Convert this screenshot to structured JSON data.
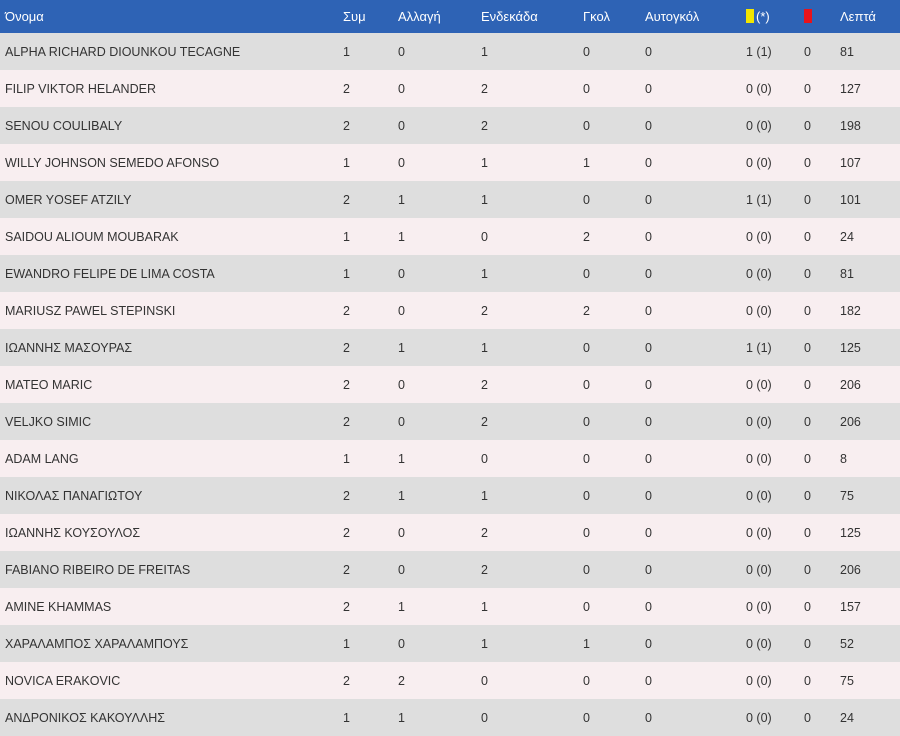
{
  "header": {
    "name": "Όνομα",
    "appearances": "Συμ",
    "subs": "Αλλαγή",
    "lineups": "Ενδεκάδα",
    "goals": "Γκολ",
    "own_goals": "Αυτογκόλ",
    "yellow_note": "(*)",
    "minutes": "Λεπτά",
    "yellow_color": "#f2e600",
    "red_color": "#e8131b"
  },
  "rows": [
    {
      "name": "ALPHA RICHARD DIOUNKOU TECAGNE",
      "apps": "1",
      "subs": "0",
      "starts": "1",
      "goals": "0",
      "own": "0",
      "yellow": "1 (1)",
      "red": "0",
      "minutes": "81"
    },
    {
      "name": "FILIP VIKTOR HELANDER",
      "apps": "2",
      "subs": "0",
      "starts": "2",
      "goals": "0",
      "own": "0",
      "yellow": "0 (0)",
      "red": "0",
      "minutes": "127"
    },
    {
      "name": "SENOU COULIBALY",
      "apps": "2",
      "subs": "0",
      "starts": "2",
      "goals": "0",
      "own": "0",
      "yellow": "0 (0)",
      "red": "0",
      "minutes": "198"
    },
    {
      "name": "WILLY JOHNSON SEMEDO AFONSO",
      "apps": "1",
      "subs": "0",
      "starts": "1",
      "goals": "1",
      "own": "0",
      "yellow": "0 (0)",
      "red": "0",
      "minutes": "107"
    },
    {
      "name": "OMER YOSEF ATZILY",
      "apps": "2",
      "subs": "1",
      "starts": "1",
      "goals": "0",
      "own": "0",
      "yellow": "1 (1)",
      "red": "0",
      "minutes": "101"
    },
    {
      "name": "SAIDOU ALIOUM MOUBARAK",
      "apps": "1",
      "subs": "1",
      "starts": "0",
      "goals": "2",
      "own": "0",
      "yellow": "0 (0)",
      "red": "0",
      "minutes": "24"
    },
    {
      "name": "EWANDRO FELIPE DE LIMA COSTA",
      "apps": "1",
      "subs": "0",
      "starts": "1",
      "goals": "0",
      "own": "0",
      "yellow": "0 (0)",
      "red": "0",
      "minutes": "81"
    },
    {
      "name": "MARIUSZ PAWEL STEPINSKI",
      "apps": "2",
      "subs": "0",
      "starts": "2",
      "goals": "2",
      "own": "0",
      "yellow": "0 (0)",
      "red": "0",
      "minutes": "182"
    },
    {
      "name": "ΙΩΑΝΝΗΣ ΜΑΣΟΥΡΑΣ",
      "apps": "2",
      "subs": "1",
      "starts": "1",
      "goals": "0",
      "own": "0",
      "yellow": "1 (1)",
      "red": "0",
      "minutes": "125"
    },
    {
      "name": "MATEO MARIC",
      "apps": "2",
      "subs": "0",
      "starts": "2",
      "goals": "0",
      "own": "0",
      "yellow": "0 (0)",
      "red": "0",
      "minutes": "206"
    },
    {
      "name": "VELJKO SIMIC",
      "apps": "2",
      "subs": "0",
      "starts": "2",
      "goals": "0",
      "own": "0",
      "yellow": "0 (0)",
      "red": "0",
      "minutes": "206"
    },
    {
      "name": "ADAM LANG",
      "apps": "1",
      "subs": "1",
      "starts": "0",
      "goals": "0",
      "own": "0",
      "yellow": "0 (0)",
      "red": "0",
      "minutes": "8"
    },
    {
      "name": "ΝΙΚΟΛΑΣ ΠΑΝΑΓΙΩΤΟΥ",
      "apps": "2",
      "subs": "1",
      "starts": "1",
      "goals": "0",
      "own": "0",
      "yellow": "0 (0)",
      "red": "0",
      "minutes": "75"
    },
    {
      "name": "ΙΩΑΝΝΗΣ ΚΟΥΣΟΥΛΟΣ",
      "apps": "2",
      "subs": "0",
      "starts": "2",
      "goals": "0",
      "own": "0",
      "yellow": "0 (0)",
      "red": "0",
      "minutes": "125"
    },
    {
      "name": "FABIANO RIBEIRO DE FREITAS",
      "apps": "2",
      "subs": "0",
      "starts": "2",
      "goals": "0",
      "own": "0",
      "yellow": "0 (0)",
      "red": "0",
      "minutes": "206"
    },
    {
      "name": "AMINE KHAMMAS",
      "apps": "2",
      "subs": "1",
      "starts": "1",
      "goals": "0",
      "own": "0",
      "yellow": "0 (0)",
      "red": "0",
      "minutes": "157"
    },
    {
      "name": "ΧΑΡΑΛΑΜΠΟΣ ΧΑΡΑΛΑΜΠΟΥΣ",
      "apps": "1",
      "subs": "0",
      "starts": "1",
      "goals": "1",
      "own": "0",
      "yellow": "0 (0)",
      "red": "0",
      "minutes": "52"
    },
    {
      "name": "NOVICA ERAKOVIC",
      "apps": "2",
      "subs": "2",
      "starts": "0",
      "goals": "0",
      "own": "0",
      "yellow": "0 (0)",
      "red": "0",
      "minutes": "75"
    },
    {
      "name": "ΑΝΔΡΟΝΙΚΟΣ ΚΑΚΟΥΛΛΗΣ",
      "apps": "1",
      "subs": "1",
      "starts": "0",
      "goals": "0",
      "own": "0",
      "yellow": "0 (0)",
      "red": "0",
      "minutes": "24"
    }
  ]
}
